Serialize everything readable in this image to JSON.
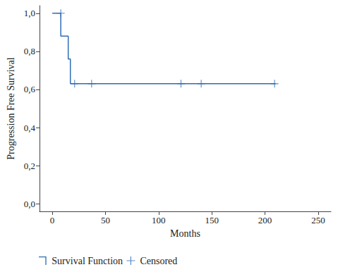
{
  "chart_data": {
    "type": "line",
    "x_label": "Months",
    "y_label": "Progression Free Survival",
    "xlim": [
      -12,
      262
    ],
    "xticks": [
      0,
      50,
      100,
      150,
      200,
      250
    ],
    "ylim": [
      -0.04,
      1.04
    ],
    "yticks": [
      {
        "value": 0,
        "label": "0,0"
      },
      {
        "value": 0.2,
        "label": "0,2"
      },
      {
        "value": 0.4,
        "label": "0,4"
      },
      {
        "value": 0.6,
        "label": "0,6"
      },
      {
        "value": 0.8,
        "label": "0,8"
      },
      {
        "value": 1,
        "label": "1,0"
      }
    ],
    "grid": false,
    "legend": "bottom-left",
    "series": [
      {
        "name": "Survival Function",
        "type": "line",
        "line_style": "step",
        "color": "#2f6db3",
        "x": [
          0,
          8,
          15,
          17,
          210
        ],
        "values": [
          1,
          0.88,
          0.76,
          0.63,
          0.63
        ]
      },
      {
        "name": "Censored",
        "type": "scatter",
        "marker": "cross",
        "color": "#2f6db3",
        "x": [
          8,
          21,
          37,
          121,
          140,
          209
        ],
        "values": [
          1,
          0.63,
          0.63,
          0.63,
          0.63,
          0.63
        ]
      }
    ]
  }
}
